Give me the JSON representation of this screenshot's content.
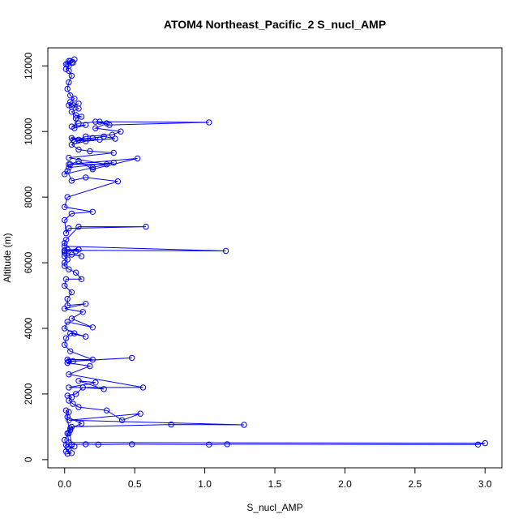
{
  "chart_data": {
    "type": "line",
    "title": "ATOM4 Northeast_Pacific_2 S_nucl_AMP",
    "xlabel": "S_nucl_AMP",
    "ylabel": "Altitude (m)",
    "xlim": [
      -0.12,
      3.12
    ],
    "ylim": [
      -250,
      12550
    ],
    "xticks": [
      0.0,
      0.5,
      1.0,
      1.5,
      2.0,
      2.5,
      3.0
    ],
    "xtick_labels": [
      "0.0",
      "0.5",
      "1.0",
      "1.5",
      "2.0",
      "2.5",
      "3.0"
    ],
    "yticks": [
      0,
      2000,
      4000,
      6000,
      8000,
      10000,
      12000
    ],
    "ytick_labels": [
      "0",
      "2000",
      "4000",
      "6000",
      "8000",
      "10000",
      "12000"
    ],
    "grid": false,
    "marker": "open-circle",
    "color": "#0000ff",
    "series": [
      {
        "x": [
          0.02,
          0.05,
          0.01,
          0.03,
          0.07,
          0.02,
          0.01,
          0.0,
          0.03,
          0.04,
          0.12,
          0.02,
          0.03,
          0.01,
          0.05,
          0.15,
          0.24,
          0.48,
          1.03,
          1.16,
          2.95,
          3.0,
          0.03,
          0.02,
          0.04,
          0.05,
          0.76,
          1.28,
          0.03,
          0.54,
          0.41,
          0.3,
          0.1,
          0.06,
          0.03,
          0.05,
          0.02,
          0.08,
          0.13,
          0.28,
          0.1,
          0.22,
          0.03,
          0.56,
          0.03,
          0.18,
          0.02,
          0.06,
          0.48,
          0.03,
          0.02,
          0.2,
          0.04,
          0.0,
          0.01,
          0.04,
          0.15,
          0.07,
          0.0,
          0.02,
          0.2,
          0.05,
          0.13,
          0.0,
          0.15,
          0.02,
          0.02,
          0.05,
          0.0,
          0.01,
          0.12,
          0.08,
          0.03,
          0.0,
          0.0,
          0.02,
          0.0,
          0.05,
          0.12,
          0.0,
          0.0,
          0.02,
          0.1,
          0.08,
          0.0,
          1.15,
          0.0,
          0.0,
          0.01,
          0.1,
          0.58,
          0.03,
          0.01,
          0.0,
          0.05,
          0.2,
          0.0,
          0.02,
          0.38,
          0.15,
          0.05,
          0.02,
          0.0,
          0.2,
          0.35,
          0.03,
          0.03,
          0.52,
          0.2,
          0.1,
          0.04,
          0.3,
          0.03,
          0.35,
          0.18,
          0.1,
          0.05,
          0.15,
          0.25,
          0.05,
          0.06,
          0.2,
          0.28,
          0.36,
          0.07,
          0.2,
          0.1,
          0.15,
          0.34,
          0.4,
          0.22,
          0.3,
          0.22,
          0.32,
          1.03,
          0.25,
          0.1,
          0.05,
          0.15,
          0.07,
          0.08,
          0.12,
          0.08,
          0.05,
          0.1,
          0.06,
          0.1,
          0.05,
          0.03,
          0.04,
          0.07,
          0.04,
          0.02,
          0.03,
          0.05,
          0.03,
          0.01,
          0.03,
          0.02,
          0.05,
          0.03,
          0.07,
          0.04,
          0.01,
          0.06
        ],
        "y": [
          180,
          200,
          250,
          320,
          400,
          380,
          450,
          600,
          800,
          950,
          1100,
          1300,
          1450,
          1500,
          460,
          470,
          460,
          470,
          460,
          470,
          460,
          500,
          520,
          800,
          900,
          1000,
          1070,
          1060,
          1200,
          1400,
          1200,
          1500,
          1600,
          1700,
          1800,
          1900,
          1950,
          2000,
          2200,
          2150,
          2400,
          2350,
          2200,
          2200,
          2600,
          2850,
          2950,
          3000,
          3100,
          3000,
          3050,
          3050,
          3300,
          3500,
          3700,
          3850,
          3750,
          3850,
          4000,
          4200,
          4030,
          4300,
          4500,
          4600,
          4750,
          4700,
          4900,
          5100,
          5300,
          5500,
          5500,
          5700,
          5800,
          5900,
          6000,
          6100,
          6200,
          6250,
          6200,
          6300,
          6350,
          6400,
          6400,
          6350,
          6380,
          6360,
          6500,
          6600,
          6700,
          7100,
          7100,
          7050,
          6900,
          7300,
          7500,
          7550,
          7700,
          8000,
          8480,
          8600,
          8500,
          8800,
          8700,
          8900,
          9050,
          8900,
          9000,
          9180,
          8850,
          9100,
          9000,
          9000,
          9200,
          9350,
          9400,
          9450,
          9600,
          9700,
          9750,
          9800,
          9750,
          9800,
          9850,
          9780,
          9700,
          9800,
          9750,
          9850,
          9900,
          10000,
          10100,
          10250,
          10300,
          10200,
          10280,
          10300,
          10250,
          10150,
          10200,
          10100,
          10400,
          10450,
          10500,
          10600,
          10700,
          10800,
          10850,
          10750,
          10800,
          10900,
          11000,
          11100,
          11300,
          11500,
          11700,
          11850,
          11900,
          12000,
          12050,
          12100,
          12150,
          12200,
          12150,
          12050,
          12100
        ]
      }
    ]
  }
}
